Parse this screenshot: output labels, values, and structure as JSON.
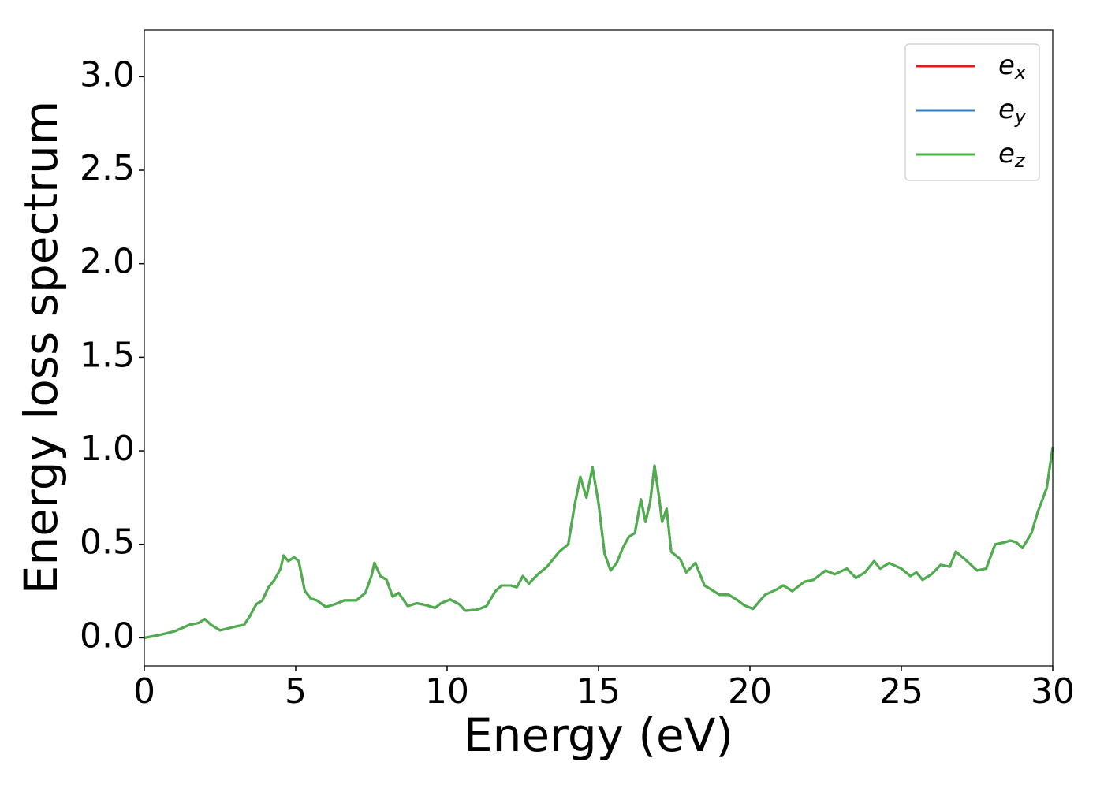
{
  "chart_data": {
    "type": "line",
    "xlabel": "Energy (eV)",
    "ylabel": "Energy loss spectrum",
    "x": [
      0,
      0.5,
      1,
      1.5,
      1.8,
      2.0,
      2.2,
      2.5,
      3.0,
      3.3,
      3.5,
      3.7,
      3.9,
      4.1,
      4.3,
      4.5,
      4.6,
      4.75,
      4.95,
      5.1,
      5.3,
      5.5,
      5.7,
      6.0,
      6.3,
      6.6,
      7.0,
      7.3,
      7.5,
      7.6,
      7.8,
      8.0,
      8.2,
      8.4,
      8.7,
      9.0,
      9.3,
      9.6,
      9.8,
      10.1,
      10.4,
      10.6,
      11.0,
      11.3,
      11.6,
      11.8,
      12.1,
      12.3,
      12.5,
      12.7,
      13.0,
      13.3,
      13.7,
      14.0,
      14.2,
      14.4,
      14.6,
      14.8,
      15.0,
      15.2,
      15.4,
      15.6,
      15.8,
      16.0,
      16.2,
      16.4,
      16.55,
      16.7,
      16.85,
      17.0,
      17.1,
      17.25,
      17.4,
      17.7,
      17.9,
      18.2,
      18.5,
      18.8,
      19.0,
      19.3,
      19.6,
      19.8,
      20.1,
      20.5,
      20.9,
      21.1,
      21.4,
      21.8,
      22.1,
      22.5,
      22.8,
      23.2,
      23.5,
      23.8,
      24.1,
      24.3,
      24.6,
      25.0,
      25.3,
      25.5,
      25.7,
      26.0,
      26.3,
      26.6,
      26.8,
      27.1,
      27.5,
      27.8,
      28.1,
      28.4,
      28.6,
      28.8,
      29.0,
      29.3,
      29.5,
      29.8,
      30.0
    ],
    "series": [
      {
        "name": "ex",
        "color": "#e41a1c",
        "values": [
          0,
          0.015,
          0.035,
          0.07,
          0.08,
          0.1,
          0.07,
          0.04,
          0.06,
          0.07,
          0.12,
          0.18,
          0.2,
          0.27,
          0.31,
          0.37,
          0.44,
          0.41,
          0.43,
          0.41,
          0.25,
          0.21,
          0.2,
          0.165,
          0.18,
          0.2,
          0.2,
          0.24,
          0.33,
          0.4,
          0.33,
          0.31,
          0.22,
          0.24,
          0.17,
          0.185,
          0.175,
          0.16,
          0.185,
          0.205,
          0.18,
          0.145,
          0.15,
          0.17,
          0.25,
          0.28,
          0.28,
          0.27,
          0.33,
          0.29,
          0.34,
          0.38,
          0.46,
          0.5,
          0.7,
          0.86,
          0.75,
          0.91,
          0.72,
          0.45,
          0.36,
          0.4,
          0.48,
          0.54,
          0.56,
          0.74,
          0.62,
          0.72,
          0.92,
          0.75,
          0.62,
          0.69,
          0.46,
          0.42,
          0.35,
          0.4,
          0.28,
          0.25,
          0.23,
          0.23,
          0.2,
          0.175,
          0.155,
          0.23,
          0.26,
          0.28,
          0.25,
          0.3,
          0.31,
          0.36,
          0.34,
          0.37,
          0.32,
          0.35,
          0.41,
          0.37,
          0.4,
          0.37,
          0.33,
          0.35,
          0.31,
          0.34,
          0.39,
          0.38,
          0.46,
          0.42,
          0.36,
          0.37,
          0.5,
          0.51,
          0.52,
          0.51,
          0.48,
          0.56,
          0.67,
          0.8,
          1.02
        ]
      },
      {
        "name": "ey",
        "color": "#377eb8",
        "values": [
          0,
          0.015,
          0.035,
          0.07,
          0.08,
          0.1,
          0.07,
          0.04,
          0.06,
          0.07,
          0.12,
          0.18,
          0.2,
          0.27,
          0.31,
          0.37,
          0.44,
          0.41,
          0.43,
          0.41,
          0.25,
          0.21,
          0.2,
          0.165,
          0.18,
          0.2,
          0.2,
          0.24,
          0.33,
          0.4,
          0.33,
          0.31,
          0.22,
          0.24,
          0.17,
          0.185,
          0.175,
          0.16,
          0.185,
          0.205,
          0.18,
          0.145,
          0.15,
          0.17,
          0.25,
          0.28,
          0.28,
          0.27,
          0.33,
          0.29,
          0.34,
          0.38,
          0.46,
          0.5,
          0.7,
          0.86,
          0.75,
          0.91,
          0.72,
          0.45,
          0.36,
          0.4,
          0.48,
          0.54,
          0.56,
          0.74,
          0.62,
          0.72,
          0.92,
          0.75,
          0.62,
          0.69,
          0.46,
          0.42,
          0.35,
          0.4,
          0.28,
          0.25,
          0.23,
          0.23,
          0.2,
          0.175,
          0.155,
          0.23,
          0.26,
          0.28,
          0.25,
          0.3,
          0.31,
          0.36,
          0.34,
          0.37,
          0.32,
          0.35,
          0.41,
          0.37,
          0.4,
          0.37,
          0.33,
          0.35,
          0.31,
          0.34,
          0.39,
          0.38,
          0.46,
          0.42,
          0.36,
          0.37,
          0.5,
          0.51,
          0.52,
          0.51,
          0.48,
          0.56,
          0.67,
          0.8,
          1.02
        ]
      },
      {
        "name": "ez",
        "color": "#4daf4a",
        "values": [
          0,
          0.015,
          0.035,
          0.07,
          0.08,
          0.1,
          0.07,
          0.04,
          0.06,
          0.07,
          0.12,
          0.18,
          0.2,
          0.27,
          0.31,
          0.37,
          0.44,
          0.41,
          0.43,
          0.41,
          0.25,
          0.21,
          0.2,
          0.165,
          0.18,
          0.2,
          0.2,
          0.24,
          0.33,
          0.4,
          0.33,
          0.31,
          0.22,
          0.24,
          0.17,
          0.185,
          0.175,
          0.16,
          0.185,
          0.205,
          0.18,
          0.145,
          0.15,
          0.17,
          0.25,
          0.28,
          0.28,
          0.27,
          0.33,
          0.29,
          0.34,
          0.38,
          0.46,
          0.5,
          0.7,
          0.86,
          0.75,
          0.91,
          0.72,
          0.45,
          0.36,
          0.4,
          0.48,
          0.54,
          0.56,
          0.74,
          0.62,
          0.72,
          0.92,
          0.75,
          0.62,
          0.69,
          0.46,
          0.42,
          0.35,
          0.4,
          0.28,
          0.25,
          0.23,
          0.23,
          0.2,
          0.175,
          0.155,
          0.23,
          0.26,
          0.28,
          0.25,
          0.3,
          0.31,
          0.36,
          0.34,
          0.37,
          0.32,
          0.35,
          0.41,
          0.37,
          0.4,
          0.37,
          0.33,
          0.35,
          0.31,
          0.34,
          0.39,
          0.38,
          0.46,
          0.42,
          0.36,
          0.37,
          0.5,
          0.51,
          0.52,
          0.51,
          0.48,
          0.56,
          0.67,
          0.8,
          1.02
        ]
      }
    ],
    "xlim": [
      0,
      30
    ],
    "xticks": [
      0,
      5,
      10,
      15,
      20,
      25,
      30
    ],
    "ylim": [
      -0.15,
      3.25
    ],
    "yticks": [
      {
        "value": 0,
        "label": "0.0"
      },
      0.5,
      {
        "value": 1,
        "label": "1.0"
      },
      1.5,
      {
        "value": 2,
        "label": "2.0"
      },
      2.5,
      {
        "value": 3,
        "label": "3.0"
      }
    ],
    "grid": false,
    "legend": "upper right"
  }
}
